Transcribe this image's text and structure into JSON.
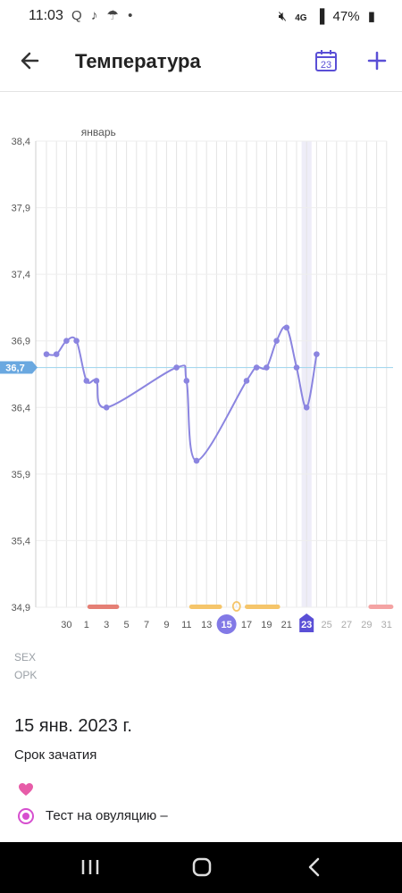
{
  "status_bar": {
    "time": "11:03",
    "notif_icons": "Q ♪ ☂ •",
    "network": "4G",
    "battery": "47%"
  },
  "app_bar": {
    "title": "Температура",
    "calendar_day": "23"
  },
  "chart": {
    "month_label": "январь",
    "baseline_label": "36,7",
    "today_label": "23",
    "selected_label": "15",
    "legend_sex": "SEX",
    "legend_opk": "OPK"
  },
  "chart_data": {
    "type": "line",
    "title": "",
    "xlabel": "",
    "ylabel": "",
    "y_tick_labels": [
      "38,4",
      "37,9",
      "37,4",
      "36,9",
      "36,4",
      "35,9",
      "35,4",
      "34,9"
    ],
    "ylim": [
      34.9,
      38.4
    ],
    "x_tick_labels": [
      "30",
      "1",
      "3",
      "5",
      "7",
      "9",
      "11",
      "13",
      "15",
      "17",
      "19",
      "21",
      "23",
      "25",
      "27",
      "29",
      "31"
    ],
    "baseline": 36.7,
    "series": [
      {
        "x": [
          "28",
          "29",
          "30",
          "31",
          "1",
          "2",
          "3",
          "4",
          "10",
          "11",
          "12",
          "17",
          "18",
          "19",
          "20",
          "21",
          "22",
          "23",
          "24",
          "25"
        ],
        "values": [
          36.8,
          36.8,
          36.9,
          36.9,
          36.6,
          36.6,
          36.4,
          null,
          36.7,
          36.6,
          36.0,
          36.6,
          36.7,
          36.7,
          36.9,
          37.0,
          36.7,
          36.4,
          36.8,
          null
        ]
      }
    ],
    "colors": {
      "line": "#8b85e0",
      "baseline": "#a6d8ee",
      "period": "#e57f75",
      "fertile": "#f5c56a",
      "selected": "#8279e6",
      "today": "#5a4fd6"
    }
  },
  "details": {
    "date": "15 янв. 2023 г.",
    "subtitle": "Срок зачатия",
    "heart_icon": "heart-icon",
    "ovulation_test": "Тест на овуляцию –"
  },
  "nav_bar": {
    "recents_icon": "recents-icon",
    "home_icon": "home-icon",
    "back_icon": "back-icon"
  }
}
